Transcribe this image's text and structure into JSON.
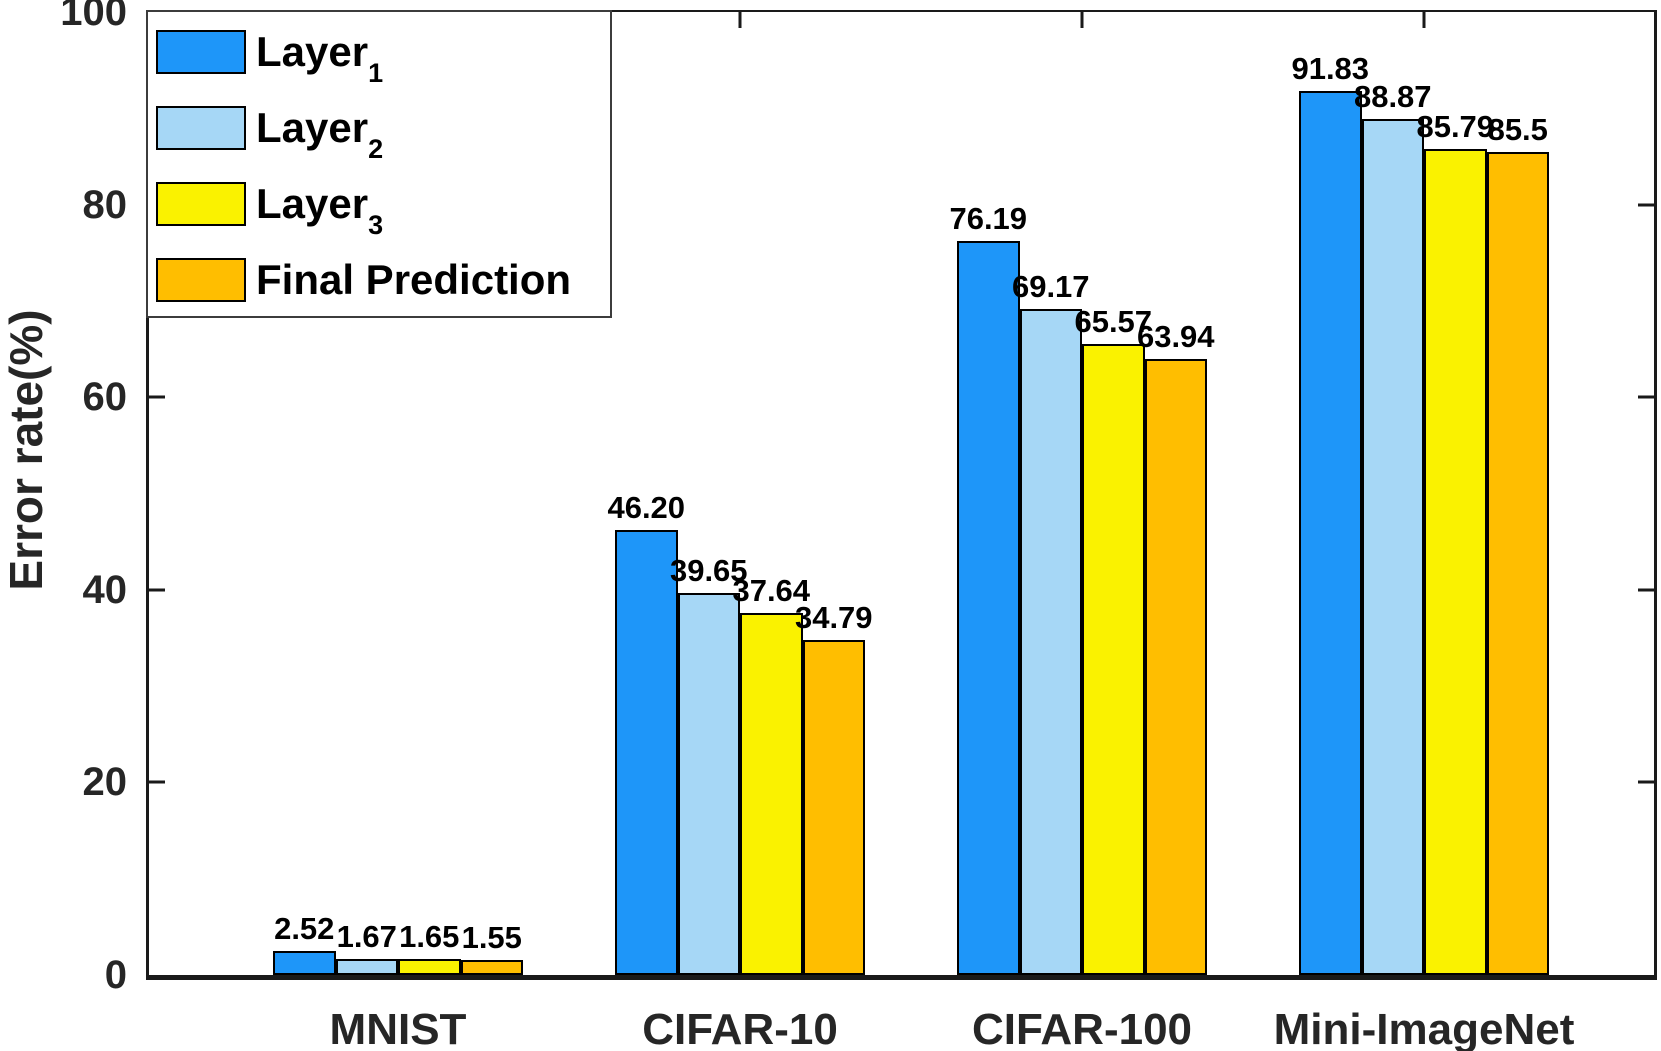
{
  "chart_data": {
    "type": "bar",
    "title": "",
    "xlabel": "",
    "ylabel": "Error rate(%)",
    "ylim": [
      0,
      100
    ],
    "yticks": [
      0,
      20,
      40,
      60,
      80,
      100
    ],
    "grid": false,
    "legend_position": "top-left",
    "bar_value_labels_shown": true,
    "categories": [
      "MNIST",
      "CIFAR-10",
      "CIFAR-100",
      "Mini-ImageNet"
    ],
    "series": [
      {
        "name": "Layer_1",
        "legend_base": "Layer",
        "legend_sub": "1",
        "color": "#1E96F9",
        "values": [
          2.52,
          46.2,
          76.19,
          91.83
        ],
        "value_labels": [
          "2.52",
          "46.20",
          "76.19",
          "91.83"
        ]
      },
      {
        "name": "Layer_2",
        "legend_base": "Layer",
        "legend_sub": "2",
        "color": "#A6D7F6",
        "values": [
          1.67,
          39.65,
          69.17,
          88.87
        ],
        "value_labels": [
          "1.67",
          "39.65",
          "69.17",
          "88.87"
        ]
      },
      {
        "name": "Layer_3",
        "legend_base": "Layer",
        "legend_sub": "3",
        "color": "#FAF200",
        "values": [
          1.65,
          37.64,
          65.57,
          85.79
        ],
        "value_labels": [
          "1.65",
          "37.64",
          "65.57",
          "85.79"
        ]
      },
      {
        "name": "Final Prediction",
        "legend_base": "Final Prediction",
        "legend_sub": "",
        "color": "#FFBE00",
        "values": [
          1.55,
          34.79,
          63.94,
          85.5
        ],
        "value_labels": [
          "1.55",
          "34.79",
          "63.94",
          "85.5"
        ]
      }
    ],
    "colors": {
      "axis": "#1a1a1a",
      "tick_label_text": "#262626",
      "value_label_text": "#000000",
      "bar_edge": "#000000",
      "legend_border": "#3c3c3c",
      "background": "#ffffff"
    }
  }
}
